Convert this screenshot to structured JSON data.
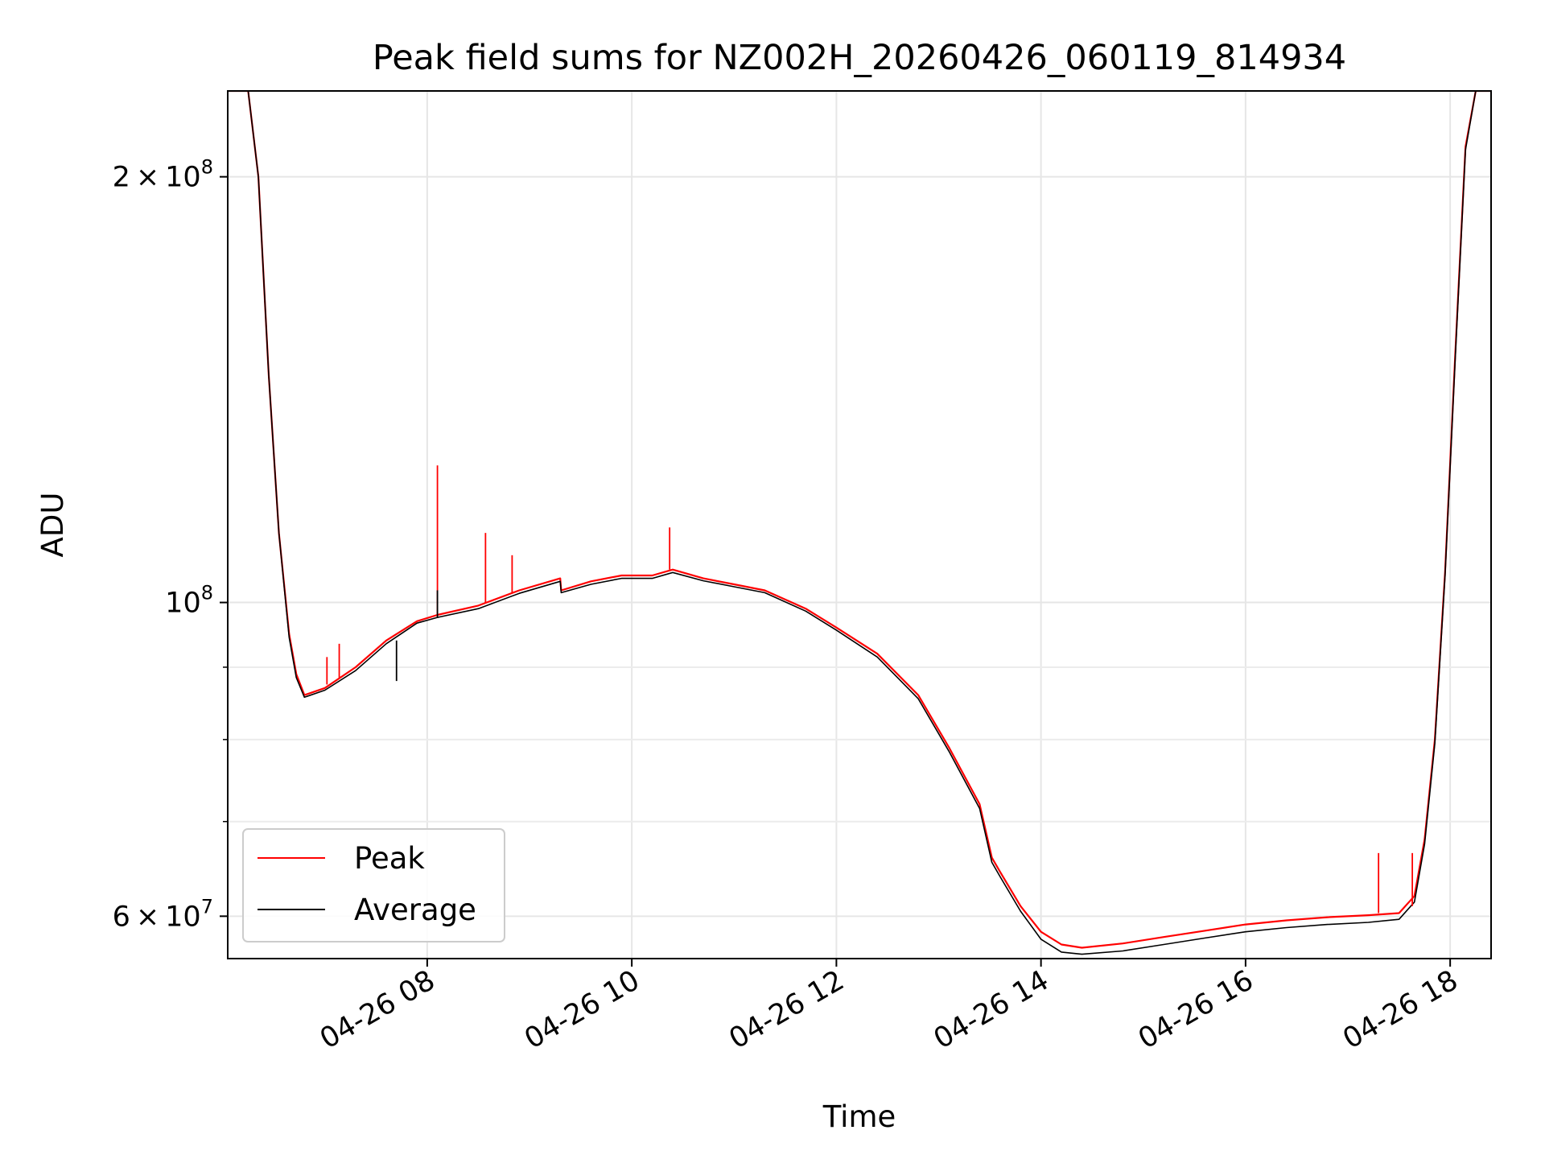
{
  "chart_data": {
    "type": "line",
    "title": "Peak field sums for NZ002H_20260426_060119_814934",
    "xlabel": "Time",
    "ylabel": "ADU",
    "yscale": "log",
    "xlim": [
      6.05,
      18.4
    ],
    "ylim": [
      56000000,
      230000000
    ],
    "grid": true,
    "legend": {
      "position": "lower left",
      "entries": [
        "Peak",
        "Average"
      ]
    },
    "x_ticks": [
      {
        "value": 8,
        "label": "04-26 08"
      },
      {
        "value": 10,
        "label": "04-26 10"
      },
      {
        "value": 12,
        "label": "04-26 12"
      },
      {
        "value": 14,
        "label": "04-26 14"
      },
      {
        "value": 16,
        "label": "04-26 16"
      },
      {
        "value": 18,
        "label": "04-26 18"
      }
    ],
    "y_major_ticks": [
      {
        "value": 60000000,
        "mantissa": "6",
        "base": "10",
        "exp": "7"
      },
      {
        "value": 100000000,
        "mantissa": "",
        "base": "10",
        "exp": "8"
      },
      {
        "value": 200000000,
        "mantissa": "2",
        "base": "10",
        "exp": "8"
      }
    ],
    "y_minor_ticks": [
      70000000,
      80000000,
      90000000
    ],
    "series": [
      {
        "name": "Peak",
        "color": "#ff0000",
        "x": [
          6.05,
          6.25,
          6.35,
          6.45,
          6.55,
          6.65,
          6.72,
          6.8,
          7.0,
          7.3,
          7.6,
          7.9,
          8.1,
          8.5,
          8.9,
          9.3,
          9.31,
          9.6,
          9.9,
          10.2,
          10.4,
          10.7,
          11.0,
          11.3,
          11.7,
          12.0,
          12.4,
          12.8,
          13.1,
          13.4,
          13.52,
          13.6,
          13.8,
          14.0,
          14.2,
          14.4,
          14.8,
          15.2,
          15.6,
          16.0,
          16.4,
          16.8,
          17.2,
          17.5,
          17.65,
          17.75,
          17.85,
          17.95,
          18.05,
          18.15,
          18.25,
          18.4
        ],
        "y": [
          230000000,
          230000000,
          200000000,
          145000000,
          112000000,
          95000000,
          89000000,
          86000000,
          87000000,
          90000000,
          94000000,
          97000000,
          98000000,
          99500000,
          102000000,
          104000000,
          102000000,
          103500000,
          104500000,
          104500000,
          105500000,
          104000000,
          103000000,
          102000000,
          99000000,
          96000000,
          92000000,
          86000000,
          79000000,
          72000000,
          66000000,
          64500000,
          61000000,
          58500000,
          57300000,
          57000000,
          57400000,
          58000000,
          58600000,
          59200000,
          59600000,
          59900000,
          60100000,
          60300000,
          62000000,
          68000000,
          80000000,
          105000000,
          150000000,
          210000000,
          230000000,
          230000000
        ]
      },
      {
        "name": "Average",
        "color": "#000000",
        "x": [
          6.05,
          6.25,
          6.35,
          6.45,
          6.55,
          6.65,
          6.72,
          6.8,
          7.0,
          7.3,
          7.6,
          7.9,
          8.1,
          8.5,
          8.9,
          9.3,
          9.31,
          9.6,
          9.9,
          10.2,
          10.4,
          10.7,
          11.0,
          11.3,
          11.7,
          12.0,
          12.4,
          12.8,
          13.1,
          13.4,
          13.52,
          13.6,
          13.8,
          14.0,
          14.2,
          14.4,
          14.8,
          15.2,
          15.6,
          16.0,
          16.4,
          16.8,
          17.2,
          17.5,
          17.65,
          17.75,
          17.85,
          17.95,
          18.05,
          18.15,
          18.25,
          18.4
        ],
        "y": [
          230000000,
          230000000,
          200000000,
          145000000,
          112000000,
          94500000,
          88500000,
          85700000,
          86700000,
          89500000,
          93500000,
          96700000,
          97600000,
          99000000,
          101500000,
          103500000,
          101600000,
          103000000,
          104000000,
          104000000,
          105000000,
          103600000,
          102600000,
          101600000,
          98600000,
          95600000,
          91500000,
          85500000,
          78500000,
          71500000,
          65500000,
          64000000,
          60500000,
          57800000,
          56600000,
          56400000,
          56700000,
          57300000,
          57900000,
          58500000,
          58900000,
          59200000,
          59400000,
          59700000,
          61400000,
          67500000,
          79500000,
          104500000,
          149000000,
          209000000,
          230000000,
          230000000
        ]
      }
    ],
    "spikes": [
      {
        "series": "Peak",
        "x": 8.1,
        "base": 98000000,
        "top": 125000000
      },
      {
        "series": "Peak",
        "x": 8.57,
        "base": 100000000,
        "top": 112000000
      },
      {
        "series": "Peak",
        "x": 8.83,
        "base": 101500000,
        "top": 108000000
      },
      {
        "series": "Peak",
        "x": 10.37,
        "base": 105500000,
        "top": 113000000
      },
      {
        "series": "Peak",
        "x": 7.02,
        "base": 87500000,
        "top": 91500000
      },
      {
        "series": "Peak",
        "x": 7.14,
        "base": 88500000,
        "top": 93500000
      },
      {
        "series": "Peak",
        "x": 17.3,
        "base": 60300000,
        "top": 66500000
      },
      {
        "series": "Peak",
        "x": 17.63,
        "base": 61000000,
        "top": 66500000
      },
      {
        "series": "Average",
        "x": 7.7,
        "base": 94000000,
        "top": 88000000
      },
      {
        "series": "Average",
        "x": 8.1,
        "base": 97500000,
        "top": 102000000
      }
    ]
  }
}
